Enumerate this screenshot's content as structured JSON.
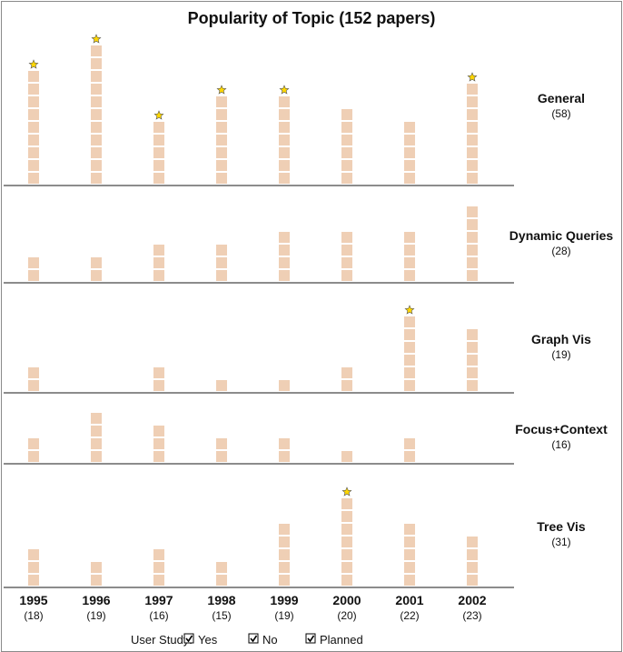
{
  "chart_data": {
    "type": "bar",
    "title": "Popularity of Topic (152 papers)",
    "categories": [
      "1995",
      "1996",
      "1997",
      "1998",
      "1999",
      "2000",
      "2001",
      "2002"
    ],
    "category_counts": [
      "(18)",
      "(19)",
      "(16)",
      "(15)",
      "(19)",
      "(20)",
      "(22)",
      "(23)"
    ],
    "series": [
      {
        "name": "General",
        "count_label": "(58)",
        "values": [
          9,
          11,
          5,
          7,
          7,
          6,
          5,
          8
        ],
        "starred": [
          true,
          true,
          true,
          true,
          true,
          false,
          false,
          true
        ]
      },
      {
        "name": "Dynamic Queries",
        "count_label": "(28)",
        "values": [
          2,
          2,
          3,
          3,
          4,
          4,
          4,
          6
        ],
        "starred": [
          false,
          false,
          false,
          false,
          false,
          false,
          false,
          false
        ]
      },
      {
        "name": "Graph Vis",
        "count_label": "(19)",
        "values": [
          2,
          0,
          2,
          1,
          1,
          2,
          6,
          5
        ],
        "starred": [
          false,
          false,
          false,
          false,
          false,
          false,
          true,
          false
        ]
      },
      {
        "name": "Focus+Context",
        "count_label": "(16)",
        "values": [
          2,
          4,
          3,
          2,
          2,
          1,
          2,
          0
        ],
        "starred": [
          false,
          false,
          false,
          false,
          false,
          false,
          false,
          false
        ]
      },
      {
        "name": "Tree Vis",
        "count_label": "(31)",
        "values": [
          3,
          2,
          3,
          2,
          5,
          7,
          5,
          4
        ],
        "starred": [
          false,
          false,
          false,
          false,
          false,
          true,
          false,
          false
        ]
      }
    ],
    "legend": {
      "title": "User Study:",
      "items": [
        "Yes",
        "No",
        "Planned"
      ],
      "placement": "bottom"
    },
    "colors": {
      "block": "#efcfb5",
      "baseline": "#8c8c8c",
      "star_fill": "#ffd700",
      "star_stroke": "#555555"
    }
  }
}
